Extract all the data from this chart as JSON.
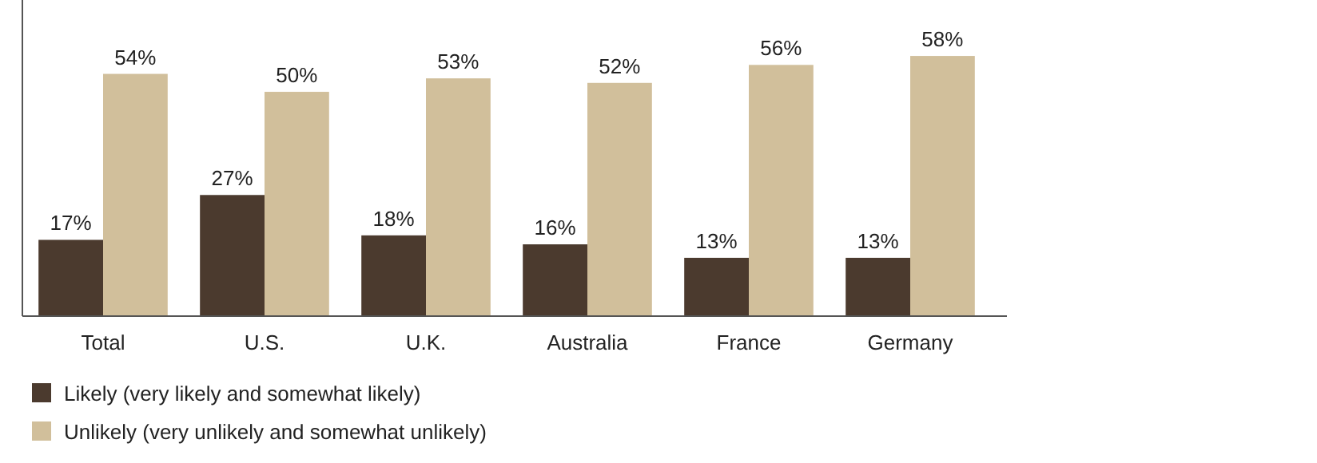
{
  "chart_data": {
    "type": "bar",
    "categories": [
      "Total",
      "U.S.",
      "U.K.",
      "Australia",
      "France",
      "Germany"
    ],
    "series": [
      {
        "name": "Likely (very likely and somewhat likely)",
        "color": "#4b3a2e",
        "values": [
          17,
          27,
          18,
          16,
          13,
          13
        ],
        "value_labels": [
          "17%",
          "27%",
          "18%",
          "16%",
          "13%",
          "13%"
        ]
      },
      {
        "name": "Unlikely (very unlikely and somewhat unlikely)",
        "color": "#d1bf9b",
        "values": [
          54,
          50,
          53,
          52,
          56,
          58
        ],
        "value_labels": [
          "54%",
          "50%",
          "53%",
          "52%",
          "56%",
          "58%"
        ]
      }
    ],
    "legend": "bottom"
  }
}
